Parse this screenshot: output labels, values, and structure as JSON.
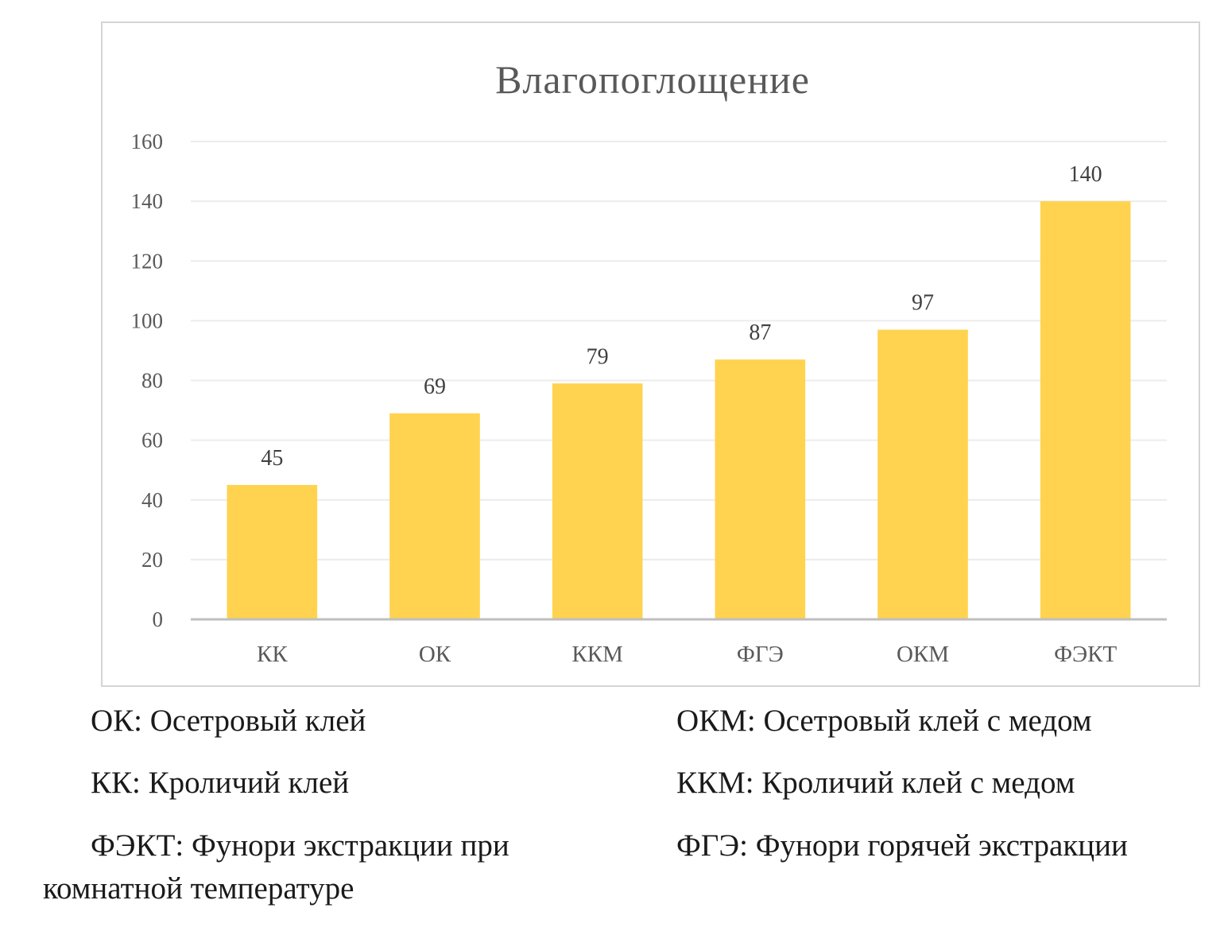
{
  "chart_data": {
    "type": "bar",
    "title": "Влагопоглощение",
    "xlabel": "",
    "ylabel": "",
    "categories": [
      "КК",
      "ОК",
      "ККМ",
      "ФГЭ",
      "ОКМ",
      "ФЭКТ"
    ],
    "values": [
      45,
      69,
      79,
      87,
      97,
      140
    ],
    "data_labels": [
      "45",
      "69",
      "79",
      "87",
      "97",
      "140"
    ],
    "ylim": [
      0,
      160
    ],
    "y_ticks": [
      0,
      20,
      40,
      60,
      80,
      100,
      120,
      140,
      160
    ],
    "grid": true,
    "legend": false,
    "bar_color": "#FFD34F",
    "gridline_color": "#ececec",
    "axis_color": "#bfbfbf"
  },
  "notes": {
    "ok": "ОК: Осетровый клей",
    "okm": "ОКМ: Осетровый клей с медом",
    "kk": "КК: Кроличий клей",
    "kkm": "ККМ: Кроличий клей с медом",
    "fekt_line1": "ФЭКТ: Фунори экстракции при",
    "fekt_line2": "комнатной температуре",
    "fge": "ФГЭ: Фунори горячей экстракции"
  }
}
